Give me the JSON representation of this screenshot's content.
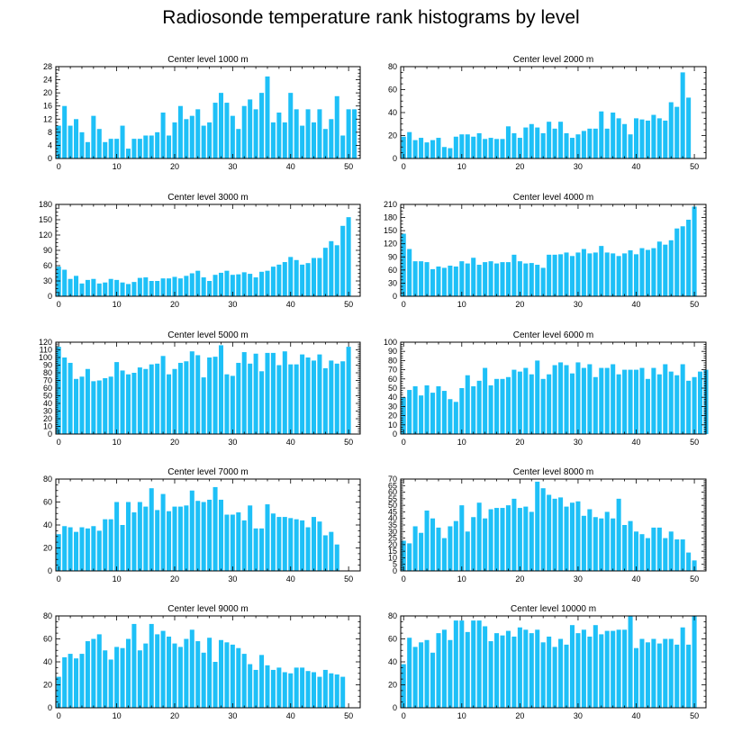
{
  "title": "Radiosonde temperature rank histograms by level",
  "bar_color": "#1ec0f7",
  "chart_data": [
    {
      "type": "bar",
      "title": "Center level 1000 m",
      "xlabel": "",
      "ylabel": "",
      "xlim": [
        -0.5,
        52
      ],
      "ylim": [
        0,
        28
      ],
      "yticks": [
        0,
        4,
        8,
        12,
        16,
        20,
        24,
        28
      ],
      "xticks": [
        0,
        10,
        20,
        30,
        40,
        50
      ],
      "values": [
        10,
        16,
        10,
        12,
        8,
        5,
        13,
        9,
        5,
        6,
        6,
        10,
        3,
        6,
        6,
        7,
        7,
        8,
        14,
        7,
        11,
        16,
        12,
        13,
        15,
        10,
        11,
        17,
        20,
        17,
        13,
        9,
        16,
        18,
        15,
        20,
        25,
        11,
        14,
        11,
        20,
        15,
        10,
        15,
        11,
        15,
        9,
        12,
        19,
        7,
        15,
        15
      ]
    },
    {
      "type": "bar",
      "title": "Center level 2000 m",
      "xlabel": "",
      "ylabel": "",
      "xlim": [
        -0.5,
        52
      ],
      "ylim": [
        0,
        80
      ],
      "yticks": [
        0,
        20,
        40,
        60,
        80
      ],
      "xticks": [
        0,
        10,
        20,
        30,
        40,
        50
      ],
      "values": [
        19,
        23,
        16,
        18,
        14,
        16,
        18,
        10,
        9,
        19,
        21,
        21,
        19,
        22,
        17,
        18,
        17,
        17,
        28,
        22,
        18,
        27,
        30,
        27,
        22,
        32,
        26,
        32,
        22,
        18,
        21,
        24,
        26,
        26,
        41,
        26,
        40,
        35,
        30,
        21,
        35,
        34,
        33,
        38,
        35,
        33,
        49,
        45,
        75,
        53
      ]
    },
    {
      "type": "bar",
      "title": "Center level 3000 m",
      "xlabel": "",
      "ylabel": "",
      "xlim": [
        -0.5,
        52
      ],
      "ylim": [
        0,
        180
      ],
      "yticks": [
        0,
        30,
        60,
        90,
        120,
        150,
        180
      ],
      "xticks": [
        0,
        10,
        20,
        30,
        40,
        50
      ],
      "values": [
        58,
        52,
        34,
        40,
        25,
        32,
        34,
        25,
        27,
        34,
        32,
        27,
        24,
        28,
        36,
        37,
        30,
        30,
        35,
        35,
        38,
        35,
        40,
        45,
        50,
        37,
        30,
        42,
        46,
        50,
        42,
        43,
        47,
        44,
        37,
        48,
        50,
        58,
        62,
        67,
        77,
        71,
        62,
        65,
        75,
        75,
        95,
        108,
        100,
        138,
        155
      ]
    },
    {
      "type": "bar",
      "title": "Center level 4000 m",
      "xlabel": "",
      "ylabel": "",
      "xlim": [
        -0.5,
        52
      ],
      "ylim": [
        0,
        210
      ],
      "yticks": [
        0,
        30,
        60,
        90,
        120,
        150,
        180,
        210
      ],
      "xticks": [
        0,
        10,
        20,
        30,
        40,
        50
      ],
      "values": [
        143,
        108,
        80,
        80,
        78,
        62,
        68,
        65,
        70,
        68,
        80,
        75,
        88,
        72,
        78,
        80,
        75,
        78,
        78,
        95,
        80,
        75,
        76,
        72,
        65,
        95,
        95,
        96,
        100,
        92,
        100,
        108,
        98,
        100,
        115,
        100,
        98,
        92,
        98,
        105,
        96,
        110,
        106,
        110,
        125,
        118,
        128,
        155,
        160,
        175,
        205
      ]
    },
    {
      "type": "bar",
      "title": "Center level 5000 m",
      "xlabel": "",
      "ylabel": "",
      "xlim": [
        -0.5,
        52
      ],
      "ylim": [
        0,
        120
      ],
      "yticks": [
        0,
        10,
        20,
        30,
        40,
        50,
        60,
        70,
        80,
        90,
        100,
        110,
        120
      ],
      "xticks": [
        0,
        10,
        20,
        30,
        40,
        50
      ],
      "values": [
        114,
        100,
        93,
        72,
        75,
        85,
        69,
        70,
        73,
        75,
        94,
        83,
        78,
        80,
        87,
        85,
        91,
        92,
        102,
        78,
        85,
        93,
        95,
        108,
        103,
        74,
        100,
        101,
        116,
        78,
        76,
        93,
        107,
        92,
        105,
        82,
        106,
        106,
        90,
        108,
        91,
        91,
        104,
        100,
        96,
        104,
        86,
        96,
        92,
        95,
        114
      ]
    },
    {
      "type": "bar",
      "title": "Center level 6000 m",
      "xlabel": "",
      "ylabel": "",
      "xlim": [
        -0.5,
        52
      ],
      "ylim": [
        0,
        100
      ],
      "yticks": [
        0,
        10,
        20,
        30,
        40,
        50,
        60,
        70,
        80,
        90,
        100
      ],
      "xticks": [
        0,
        10,
        20,
        30,
        40,
        50
      ],
      "values": [
        40,
        48,
        52,
        42,
        53,
        45,
        52,
        47,
        38,
        35,
        50,
        64,
        52,
        58,
        72,
        53,
        60,
        60,
        62,
        70,
        68,
        72,
        65,
        80,
        60,
        65,
        75,
        78,
        75,
        66,
        78,
        72,
        76,
        62,
        72,
        72,
        76,
        65,
        70,
        70,
        70,
        72,
        60,
        72,
        65,
        76,
        68,
        64,
        76,
        58,
        62,
        68,
        70
      ]
    },
    {
      "type": "bar",
      "title": "Center level 7000 m",
      "xlabel": "",
      "ylabel": "",
      "xlim": [
        -0.5,
        52
      ],
      "ylim": [
        0,
        80
      ],
      "yticks": [
        0,
        20,
        40,
        60,
        80
      ],
      "xticks": [
        0,
        10,
        20,
        30,
        40,
        50
      ],
      "values": [
        32,
        39,
        38,
        34,
        38,
        37,
        39,
        35,
        45,
        45,
        60,
        40,
        60,
        51,
        60,
        56,
        72,
        53,
        67,
        52,
        56,
        56,
        57,
        70,
        61,
        60,
        62,
        73,
        62,
        49,
        49,
        51,
        44,
        57,
        37,
        37,
        58,
        50,
        47,
        47,
        46,
        45,
        44,
        38,
        47,
        43,
        31,
        34,
        23
      ]
    },
    {
      "type": "bar",
      "title": "Center level 8000 m",
      "xlabel": "",
      "ylabel": "",
      "xlim": [
        -0.5,
        52
      ],
      "ylim": [
        0,
        70
      ],
      "yticks": [
        0,
        5,
        10,
        15,
        20,
        25,
        30,
        35,
        40,
        45,
        50,
        55,
        60,
        65,
        70
      ],
      "xticks": [
        0,
        10,
        20,
        30,
        40,
        50
      ],
      "values": [
        23,
        21,
        34,
        29,
        46,
        40,
        33,
        25,
        34,
        38,
        50,
        30,
        41,
        52,
        40,
        47,
        48,
        48,
        50,
        55,
        48,
        49,
        45,
        68,
        63,
        58,
        55,
        56,
        49,
        52,
        53,
        42,
        47,
        41,
        40,
        45,
        40,
        55,
        35,
        38,
        30,
        28,
        25,
        33,
        33,
        25,
        30,
        24,
        24,
        14,
        8
      ]
    },
    {
      "type": "bar",
      "title": "Center level 9000 m",
      "xlabel": "",
      "ylabel": "",
      "xlim": [
        -0.5,
        52
      ],
      "ylim": [
        0,
        80
      ],
      "yticks": [
        0,
        20,
        40,
        60,
        80
      ],
      "xticks": [
        0,
        10,
        20,
        30,
        40,
        50
      ],
      "values": [
        27,
        44,
        47,
        43,
        47,
        58,
        60,
        64,
        50,
        42,
        53,
        52,
        60,
        73,
        50,
        56,
        73,
        64,
        67,
        62,
        56,
        53,
        60,
        68,
        58,
        48,
        61,
        40,
        59,
        57,
        55,
        52,
        47,
        38,
        33,
        46,
        37,
        33,
        35,
        31,
        30,
        35,
        35,
        32,
        31,
        27,
        33,
        30,
        29,
        27
      ]
    },
    {
      "type": "bar",
      "title": "Center level 10000 m",
      "xlabel": "",
      "ylabel": "",
      "xlim": [
        -0.5,
        52
      ],
      "ylim": [
        0,
        80
      ],
      "yticks": [
        0,
        20,
        40,
        60,
        80
      ],
      "xticks": [
        0,
        10,
        20,
        30,
        40,
        50
      ],
      "values": [
        38,
        61,
        53,
        57,
        59,
        48,
        65,
        68,
        59,
        76,
        76,
        66,
        76,
        76,
        71,
        58,
        65,
        63,
        67,
        62,
        70,
        68,
        65,
        68,
        57,
        62,
        53,
        60,
        55,
        72,
        65,
        68,
        62,
        72,
        64,
        67,
        67,
        68,
        68,
        80,
        52,
        60,
        57,
        60,
        56,
        60,
        60,
        55,
        70,
        55,
        80
      ]
    }
  ]
}
